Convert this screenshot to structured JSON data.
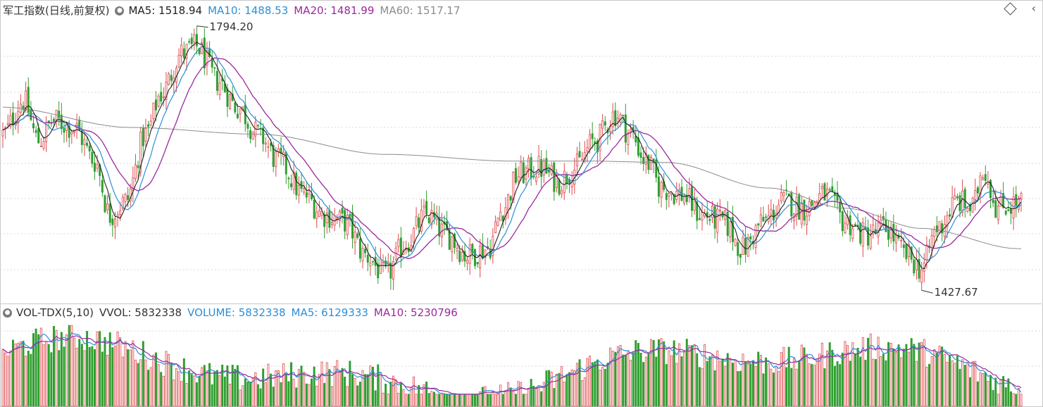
{
  "main": {
    "title": "军工指数(日线,前复权)",
    "indicators": [
      {
        "label": "MA5: 1518.94",
        "color": "#222222"
      },
      {
        "label": "MA10: 1488.53",
        "color": "#2e8fd6"
      },
      {
        "label": "MA20: 1481.99",
        "color": "#9b2a9b"
      },
      {
        "label": "MA60: 1517.17",
        "color": "#8c8c8c"
      }
    ],
    "high_label": "1794.20",
    "low_label": "1427.67"
  },
  "volume": {
    "title": "VOL-TDX(5,10)",
    "indicators": [
      {
        "label": "VVOL: 5832338",
        "color": "#333333"
      },
      {
        "label": "VOLUME: 5832338",
        "color": "#2e8fd6"
      },
      {
        "label": "MA5: 6129333",
        "color": "#2e8fd6"
      },
      {
        "label": "MA10: 5230796",
        "color": "#9b2a9b"
      }
    ]
  },
  "colors": {
    "up": "#e0474c",
    "down": "#2f9e2f",
    "ma5": "#222222",
    "ma10": "#2e8fd6",
    "ma20": "#9b2a9b",
    "ma60": "#8c8c8c",
    "grid": "#d9d9d9"
  },
  "chart_data": {
    "type": "candlestick",
    "y_range": [
      1400,
      1810
    ],
    "anchors": [
      [
        0,
        1640
      ],
      [
        8,
        1690
      ],
      [
        14,
        1630
      ],
      [
        20,
        1660
      ],
      [
        28,
        1650
      ],
      [
        36,
        1600
      ],
      [
        42,
        1520
      ],
      [
        48,
        1540
      ],
      [
        56,
        1640
      ],
      [
        62,
        1700
      ],
      [
        70,
        1760
      ],
      [
        76,
        1770
      ],
      [
        84,
        1720
      ],
      [
        92,
        1680
      ],
      [
        100,
        1640
      ],
      [
        108,
        1600
      ],
      [
        118,
        1550
      ],
      [
        126,
        1520
      ],
      [
        134,
        1510
      ],
      [
        142,
        1460
      ],
      [
        150,
        1430
      ],
      [
        158,
        1480
      ],
      [
        166,
        1520
      ],
      [
        174,
        1490
      ],
      [
        182,
        1460
      ],
      [
        190,
        1470
      ],
      [
        196,
        1530
      ],
      [
        202,
        1580
      ],
      [
        210,
        1590
      ],
      [
        218,
        1570
      ],
      [
        224,
        1590
      ],
      [
        232,
        1630
      ],
      [
        240,
        1670
      ],
      [
        246,
        1640
      ],
      [
        252,
        1600
      ],
      [
        258,
        1560
      ],
      [
        266,
        1550
      ],
      [
        274,
        1520
      ],
      [
        282,
        1510
      ],
      [
        290,
        1470
      ],
      [
        298,
        1510
      ],
      [
        306,
        1540
      ],
      [
        314,
        1530
      ],
      [
        322,
        1550
      ],
      [
        330,
        1510
      ],
      [
        338,
        1490
      ],
      [
        346,
        1500
      ],
      [
        354,
        1460
      ],
      [
        360,
        1440
      ],
      [
        366,
        1500
      ],
      [
        374,
        1540
      ],
      [
        380,
        1530
      ],
      [
        384,
        1590
      ],
      [
        390,
        1530
      ],
      [
        394,
        1535
      ],
      [
        398,
        1537
      ]
    ],
    "ma60_anchors": [
      [
        0,
        1680
      ],
      [
        50,
        1650
      ],
      [
        100,
        1640
      ],
      [
        150,
        1610
      ],
      [
        200,
        1600
      ],
      [
        230,
        1600
      ],
      [
        260,
        1598
      ],
      [
        300,
        1560
      ],
      [
        330,
        1530
      ],
      [
        360,
        1500
      ],
      [
        398,
        1470
      ]
    ]
  }
}
